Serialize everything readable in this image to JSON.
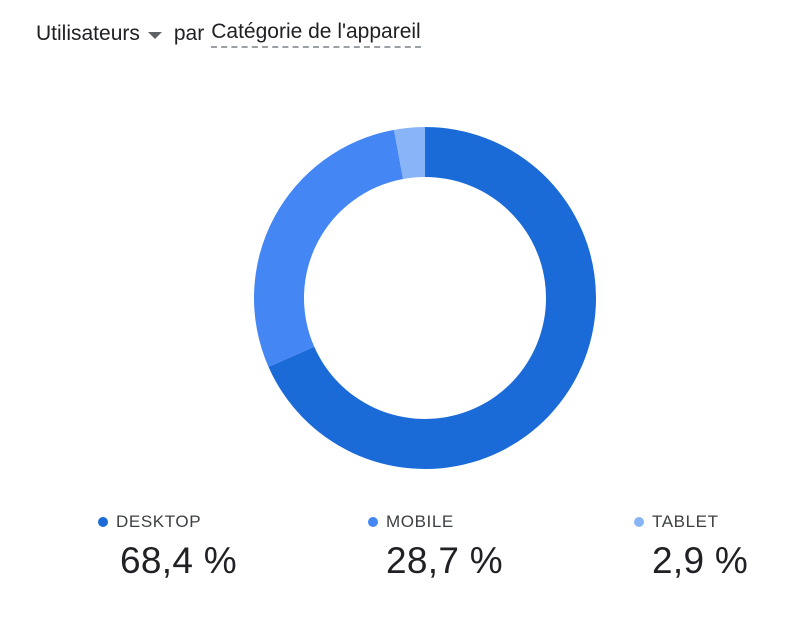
{
  "header": {
    "metric": "Utilisateurs",
    "connector": "par",
    "dimension": "Catégorie de l'appareil"
  },
  "colors": {
    "desktop": "#1a6ad8",
    "mobile": "#4486f4",
    "tablet": "#8ab4f8"
  },
  "chart_data": {
    "type": "pie",
    "variant": "donut",
    "categories": [
      "DESKTOP",
      "MOBILE",
      "TABLET"
    ],
    "values": [
      68.4,
      28.7,
      2.9
    ],
    "value_labels": [
      "68,4 %",
      "28,7 %",
      "2,9 %"
    ],
    "colors": [
      "#1a6ad8",
      "#4486f4",
      "#8ab4f8"
    ],
    "legend_position": "bottom"
  }
}
